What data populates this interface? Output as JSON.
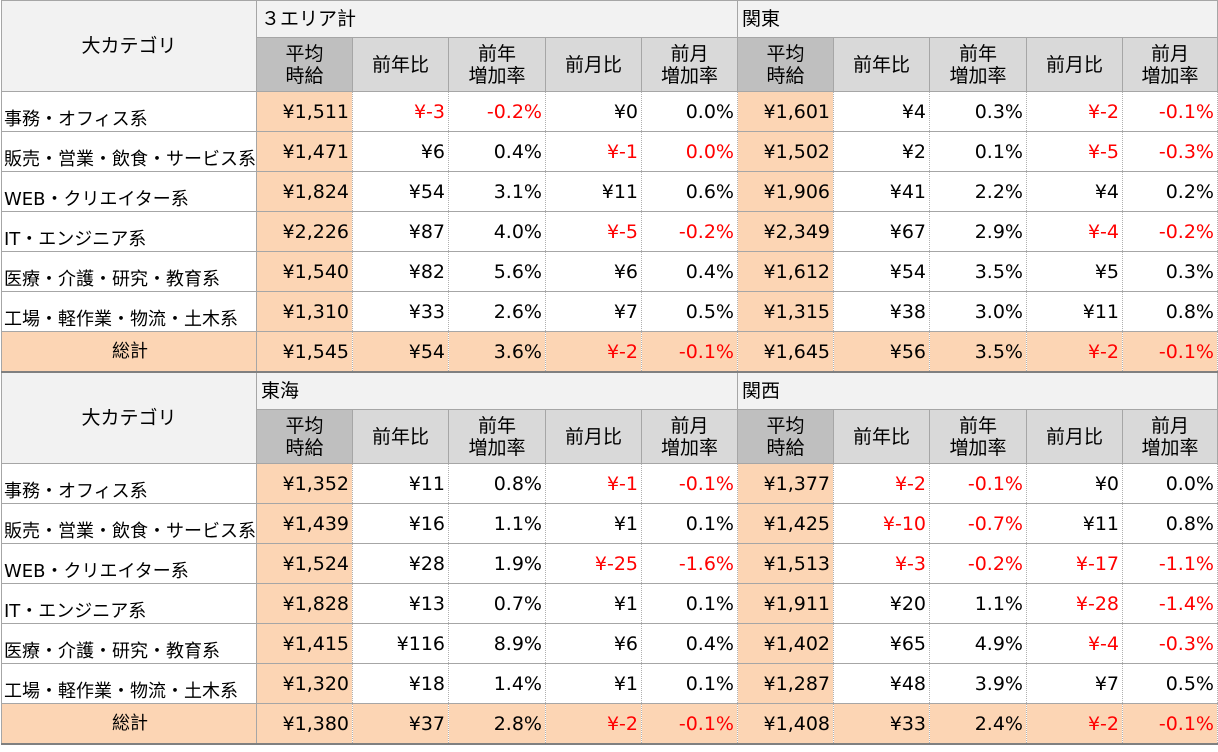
{
  "labels": {
    "category": "大カテゴリ",
    "avg_wage": "平均\n時給",
    "yoy": "前年比",
    "yoy_rate": "前年\n増加率",
    "mom": "前月比",
    "mom_rate": "前月\n増加率",
    "total": "総計"
  },
  "categories": [
    "事務・オフィス系",
    "販売・営業・飲食・サービス系",
    "WEB・クリエイター系",
    "IT・エンジニア系",
    "医療・介護・研究・教育系",
    "工場・軽作業・物流・土木系"
  ],
  "blocks": [
    {
      "regions": [
        {
          "name": "３エリア計",
          "rows": [
            [
              "¥1,511",
              "¥-3",
              "-0.2%",
              "¥0",
              "0.0%"
            ],
            [
              "¥1,471",
              "¥6",
              "0.4%",
              "¥-1",
              "0.0%"
            ],
            [
              "¥1,824",
              "¥54",
              "3.1%",
              "¥11",
              "0.6%"
            ],
            [
              "¥2,226",
              "¥87",
              "4.0%",
              "¥-5",
              "-0.2%"
            ],
            [
              "¥1,540",
              "¥82",
              "5.6%",
              "¥6",
              "0.4%"
            ],
            [
              "¥1,310",
              "¥33",
              "2.6%",
              "¥7",
              "0.5%"
            ]
          ],
          "total": [
            "¥1,545",
            "¥54",
            "3.6%",
            "¥-2",
            "-0.1%"
          ]
        },
        {
          "name": "関東",
          "rows": [
            [
              "¥1,601",
              "¥4",
              "0.3%",
              "¥-2",
              "-0.1%"
            ],
            [
              "¥1,502",
              "¥2",
              "0.1%",
              "¥-5",
              "-0.3%"
            ],
            [
              "¥1,906",
              "¥41",
              "2.2%",
              "¥4",
              "0.2%"
            ],
            [
              "¥2,349",
              "¥67",
              "2.9%",
              "¥-4",
              "-0.2%"
            ],
            [
              "¥1,612",
              "¥54",
              "3.5%",
              "¥5",
              "0.3%"
            ],
            [
              "¥1,315",
              "¥38",
              "3.0%",
              "¥11",
              "0.8%"
            ]
          ],
          "total": [
            "¥1,645",
            "¥56",
            "3.5%",
            "¥-2",
            "-0.1%"
          ]
        }
      ]
    },
    {
      "regions": [
        {
          "name": "東海",
          "rows": [
            [
              "¥1,352",
              "¥11",
              "0.8%",
              "¥-1",
              "-0.1%"
            ],
            [
              "¥1,439",
              "¥16",
              "1.1%",
              "¥1",
              "0.1%"
            ],
            [
              "¥1,524",
              "¥28",
              "1.9%",
              "¥-25",
              "-1.6%"
            ],
            [
              "¥1,828",
              "¥13",
              "0.7%",
              "¥1",
              "0.1%"
            ],
            [
              "¥1,415",
              "¥116",
              "8.9%",
              "¥6",
              "0.4%"
            ],
            [
              "¥1,320",
              "¥18",
              "1.4%",
              "¥1",
              "0.1%"
            ]
          ],
          "total": [
            "¥1,380",
            "¥37",
            "2.8%",
            "¥-2",
            "-0.1%"
          ]
        },
        {
          "name": "関西",
          "rows": [
            [
              "¥1,377",
              "¥-2",
              "-0.1%",
              "¥0",
              "0.0%"
            ],
            [
              "¥1,425",
              "¥-10",
              "-0.7%",
              "¥11",
              "0.8%"
            ],
            [
              "¥1,513",
              "¥-3",
              "-0.2%",
              "¥-17",
              "-1.1%"
            ],
            [
              "¥1,911",
              "¥20",
              "1.1%",
              "¥-28",
              "-1.4%"
            ],
            [
              "¥1,402",
              "¥65",
              "4.9%",
              "¥-4",
              "-0.3%"
            ],
            [
              "¥1,287",
              "¥48",
              "3.9%",
              "¥7",
              "0.5%"
            ]
          ],
          "total": [
            "¥1,408",
            "¥33",
            "2.4%",
            "¥-2",
            "-0.1%"
          ]
        }
      ]
    }
  ],
  "red_cells": [
    [
      0,
      0,
      0,
      1
    ],
    [
      0,
      0,
      0,
      2
    ],
    [
      0,
      0,
      1,
      3
    ],
    [
      0,
      0,
      1,
      4
    ],
    [
      0,
      0,
      3,
      3
    ],
    [
      0,
      0,
      3,
      4
    ],
    [
      0,
      0,
      "t",
      3
    ],
    [
      0,
      0,
      "t",
      4
    ],
    [
      0,
      1,
      0,
      3
    ],
    [
      0,
      1,
      0,
      4
    ],
    [
      0,
      1,
      1,
      3
    ],
    [
      0,
      1,
      1,
      4
    ],
    [
      0,
      1,
      3,
      3
    ],
    [
      0,
      1,
      3,
      4
    ],
    [
      0,
      1,
      "t",
      3
    ],
    [
      0,
      1,
      "t",
      4
    ],
    [
      1,
      0,
      0,
      3
    ],
    [
      1,
      0,
      0,
      4
    ],
    [
      1,
      0,
      2,
      3
    ],
    [
      1,
      0,
      2,
      4
    ],
    [
      1,
      0,
      "t",
      3
    ],
    [
      1,
      0,
      "t",
      4
    ],
    [
      1,
      1,
      0,
      1
    ],
    [
      1,
      1,
      0,
      2
    ],
    [
      1,
      1,
      1,
      1
    ],
    [
      1,
      1,
      1,
      2
    ],
    [
      1,
      1,
      2,
      1
    ],
    [
      1,
      1,
      2,
      2
    ],
    [
      1,
      1,
      2,
      3
    ],
    [
      1,
      1,
      2,
      4
    ],
    [
      1,
      1,
      3,
      3
    ],
    [
      1,
      1,
      3,
      4
    ],
    [
      1,
      1,
      4,
      3
    ],
    [
      1,
      1,
      4,
      4
    ],
    [
      1,
      1,
      "t",
      3
    ],
    [
      1,
      1,
      "t",
      4
    ]
  ]
}
